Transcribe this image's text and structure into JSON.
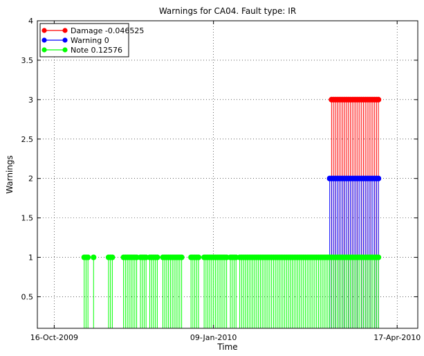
{
  "chart_data": {
    "type": "stem",
    "title": "Warnings for CA04. Fault type: IR",
    "xlabel": "Time",
    "ylabel": "Warnings",
    "x_ticks": [
      "16-Oct-2009",
      "09-Jan-2010",
      "17-Apr-2010"
    ],
    "xlim": [
      "2009-10-07",
      "2010-04-28"
    ],
    "y_ticks": [
      "0.5",
      "1",
      "1.5",
      "2",
      "2.5",
      "3",
      "3.5",
      "4"
    ],
    "ylim": [
      0.1,
      4
    ],
    "stem_baseline": 0,
    "grid": true,
    "legend_position": "top-left",
    "colors": {
      "Damage": "#ff0000",
      "Warning": "#0000ff",
      "Note": "#00ff00",
      "axes": "#000000"
    },
    "series": [
      {
        "name": "Damage -0.046525",
        "key": "Damage",
        "value": 3,
        "x_dates": [
          "2010-03-13",
          "2010-03-14",
          "2010-03-15",
          "2010-03-16",
          "2010-03-17",
          "2010-03-18",
          "2010-03-19",
          "2010-03-20",
          "2010-03-21",
          "2010-03-22",
          "2010-03-23",
          "2010-03-24",
          "2010-03-25",
          "2010-03-26",
          "2010-03-27",
          "2010-03-28",
          "2010-03-29",
          "2010-03-30",
          "2010-03-31",
          "2010-04-01",
          "2010-04-02",
          "2010-04-03",
          "2010-04-04",
          "2010-04-05",
          "2010-04-06",
          "2010-04-07"
        ]
      },
      {
        "name": "Warning 0",
        "key": "Warning",
        "value": 2,
        "x_dates": [
          "2010-03-12",
          "2010-03-13",
          "2010-03-14",
          "2010-03-15",
          "2010-03-16",
          "2010-03-17",
          "2010-03-18",
          "2010-03-19",
          "2010-03-20",
          "2010-03-21",
          "2010-03-22",
          "2010-03-23",
          "2010-03-24",
          "2010-03-25",
          "2010-03-26",
          "2010-03-27",
          "2010-03-28",
          "2010-03-29",
          "2010-03-30",
          "2010-03-31",
          "2010-04-01",
          "2010-04-02",
          "2010-04-03",
          "2010-04-04",
          "2010-04-05",
          "2010-04-06",
          "2010-04-07"
        ]
      },
      {
        "name": "Note 0.12576",
        "key": "Note",
        "value": 1,
        "x_dates": [
          "2009-11-01",
          "2009-11-02",
          "2009-11-03",
          "2009-11-06",
          "2009-11-14",
          "2009-11-15",
          "2009-11-16",
          "2009-11-22",
          "2009-11-23",
          "2009-11-24",
          "2009-11-25",
          "2009-11-26",
          "2009-11-27",
          "2009-11-28",
          "2009-11-29",
          "2009-12-01",
          "2009-12-02",
          "2009-12-03",
          "2009-12-04",
          "2009-12-06",
          "2009-12-07",
          "2009-12-08",
          "2009-12-09",
          "2009-12-10",
          "2009-12-13",
          "2009-12-14",
          "2009-12-15",
          "2009-12-16",
          "2009-12-17",
          "2009-12-18",
          "2009-12-19",
          "2009-12-20",
          "2009-12-21",
          "2009-12-22",
          "2009-12-23",
          "2009-12-28",
          "2009-12-29",
          "2009-12-30",
          "2009-12-31",
          "2010-01-01",
          "2010-01-04",
          "2010-01-05",
          "2010-01-06",
          "2010-01-07",
          "2010-01-08",
          "2010-01-09",
          "2010-01-10",
          "2010-01-11",
          "2010-01-12",
          "2010-01-13",
          "2010-01-14",
          "2010-01-15",
          "2010-01-16",
          "2010-01-18",
          "2010-01-19",
          "2010-01-20",
          "2010-01-21",
          "2010-01-23",
          "2010-01-24",
          "2010-01-25",
          "2010-01-26",
          "2010-01-27",
          "2010-01-28",
          "2010-01-29",
          "2010-01-30",
          "2010-01-31",
          "2010-02-01",
          "2010-02-02",
          "2010-02-03",
          "2010-02-04",
          "2010-02-05",
          "2010-02-06",
          "2010-02-07",
          "2010-02-08",
          "2010-02-09",
          "2010-02-10",
          "2010-02-11",
          "2010-02-12",
          "2010-02-13",
          "2010-02-14",
          "2010-02-15",
          "2010-02-16",
          "2010-02-17",
          "2010-02-18",
          "2010-02-19",
          "2010-02-20",
          "2010-02-21",
          "2010-02-22",
          "2010-02-23",
          "2010-02-24",
          "2010-02-25",
          "2010-02-26",
          "2010-02-27",
          "2010-02-28",
          "2010-03-01",
          "2010-03-02",
          "2010-03-03",
          "2010-03-04",
          "2010-03-05",
          "2010-03-06",
          "2010-03-07",
          "2010-03-08",
          "2010-03-09",
          "2010-03-10",
          "2010-03-11",
          "2010-03-12",
          "2010-03-13",
          "2010-03-14",
          "2010-03-15",
          "2010-03-16",
          "2010-03-17",
          "2010-03-18",
          "2010-03-19",
          "2010-03-20",
          "2010-03-21",
          "2010-03-22",
          "2010-03-23",
          "2010-03-24",
          "2010-03-25",
          "2010-03-26",
          "2010-03-27",
          "2010-03-28",
          "2010-03-29",
          "2010-03-30",
          "2010-03-31",
          "2010-04-01",
          "2010-04-02",
          "2010-04-03",
          "2010-04-04",
          "2010-04-05",
          "2010-04-06",
          "2010-04-07"
        ]
      }
    ]
  }
}
